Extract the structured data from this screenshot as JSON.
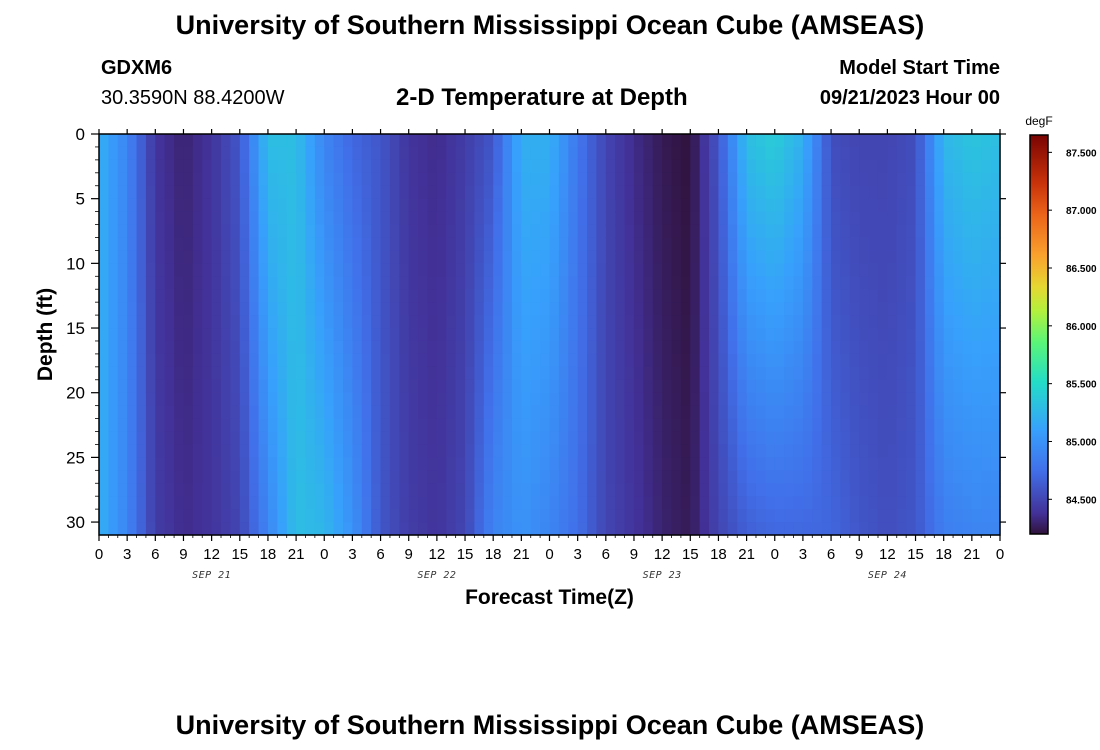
{
  "title": "University of Southern Mississippi Ocean Cube (AMSEAS)",
  "station": {
    "id": "GDXM6",
    "coords": "30.3590N  88.4200W"
  },
  "model": {
    "label": "Model Start Time",
    "start": "09/21/2023 Hour 00"
  },
  "plot_title": "2-D Temperature at Depth",
  "footer_title": "University of Southern Mississippi Ocean Cube (AMSEAS)",
  "chart_data": {
    "type": "heatmap",
    "title": "2-D Temperature at Depth",
    "xlabel": "Forecast Time(Z)",
    "ylabel": "Depth (ft)",
    "x_ticks": [
      "0",
      "3",
      "6",
      "9",
      "12",
      "15",
      "18",
      "21",
      "0",
      "3",
      "6",
      "9",
      "12",
      "15",
      "18",
      "21",
      "0",
      "3",
      "6",
      "9",
      "12",
      "15",
      "18",
      "21",
      "0",
      "3",
      "6",
      "9",
      "12",
      "15",
      "18",
      "21",
      "0"
    ],
    "x_range_hours": [
      0,
      96
    ],
    "day_labels": [
      {
        "label": "SEP 21",
        "hour": 12
      },
      {
        "label": "SEP 22",
        "hour": 36
      },
      {
        "label": "SEP 23",
        "hour": 60
      },
      {
        "label": "SEP 24",
        "hour": 84
      }
    ],
    "y_ticks": [
      "0",
      "5",
      "10",
      "15",
      "20",
      "25",
      "30"
    ],
    "ylim": [
      0,
      31
    ],
    "colorbar": {
      "unit": "degF",
      "min": 84.2,
      "max": 87.65,
      "ticks": [
        "84.500",
        "85.000",
        "85.500",
        "86.000",
        "86.500",
        "87.000",
        "87.500"
      ]
    },
    "column_temperature_profile": [
      {
        "hour": 0,
        "surface": 85.2,
        "bottom": 85.2
      },
      {
        "hour": 3,
        "surface": 84.9,
        "bottom": 84.9
      },
      {
        "hour": 6,
        "surface": 84.4,
        "bottom": 84.45
      },
      {
        "hour": 9,
        "surface": 84.3,
        "bottom": 84.35
      },
      {
        "hour": 12,
        "surface": 84.4,
        "bottom": 84.4
      },
      {
        "hour": 15,
        "surface": 84.6,
        "bottom": 84.5
      },
      {
        "hour": 18,
        "surface": 85.3,
        "bottom": 84.9
      },
      {
        "hour": 21,
        "surface": 85.3,
        "bottom": 85.3
      },
      {
        "hour": 24,
        "surface": 84.9,
        "bottom": 85.25
      },
      {
        "hour": 27,
        "surface": 84.7,
        "bottom": 85.0
      },
      {
        "hour": 30,
        "surface": 84.6,
        "bottom": 84.6
      },
      {
        "hour": 33,
        "surface": 84.4,
        "bottom": 84.45
      },
      {
        "hour": 36,
        "surface": 84.35,
        "bottom": 84.4
      },
      {
        "hour": 39,
        "surface": 84.45,
        "bottom": 84.5
      },
      {
        "hour": 42,
        "surface": 84.6,
        "bottom": 84.9
      },
      {
        "hour": 45,
        "surface": 85.2,
        "bottom": 85.0
      },
      {
        "hour": 48,
        "surface": 85.2,
        "bottom": 84.9
      },
      {
        "hour": 51,
        "surface": 84.8,
        "bottom": 84.75
      },
      {
        "hour": 54,
        "surface": 84.5,
        "bottom": 84.5
      },
      {
        "hour": 57,
        "surface": 84.35,
        "bottom": 84.4
      },
      {
        "hour": 60,
        "surface": 84.25,
        "bottom": 84.3
      },
      {
        "hour": 63,
        "surface": 84.2,
        "bottom": 84.25
      },
      {
        "hour": 66,
        "surface": 84.6,
        "bottom": 84.5
      },
      {
        "hour": 69,
        "surface": 85.3,
        "bottom": 84.65
      },
      {
        "hour": 72,
        "surface": 85.4,
        "bottom": 84.7
      },
      {
        "hour": 75,
        "surface": 85.2,
        "bottom": 84.7
      },
      {
        "hour": 78,
        "surface": 84.55,
        "bottom": 84.7
      },
      {
        "hour": 81,
        "surface": 84.5,
        "bottom": 84.6
      },
      {
        "hour": 84,
        "surface": 84.5,
        "bottom": 84.55
      },
      {
        "hour": 87,
        "surface": 84.55,
        "bottom": 84.6
      },
      {
        "hour": 90,
        "surface": 85.25,
        "bottom": 84.85
      },
      {
        "hour": 93,
        "surface": 85.35,
        "bottom": 84.9
      },
      {
        "hour": 96,
        "surface": 85.3,
        "bottom": 84.9
      }
    ],
    "colors": {
      "low": "#303a9a",
      "blue": "#3f78ea",
      "cyan": "#3ad6d8",
      "green": "#8de34a",
      "yellow": "#e8e43c",
      "orange": "#f29a2e",
      "red": "#c9300e",
      "high": "#7a0f03"
    }
  }
}
